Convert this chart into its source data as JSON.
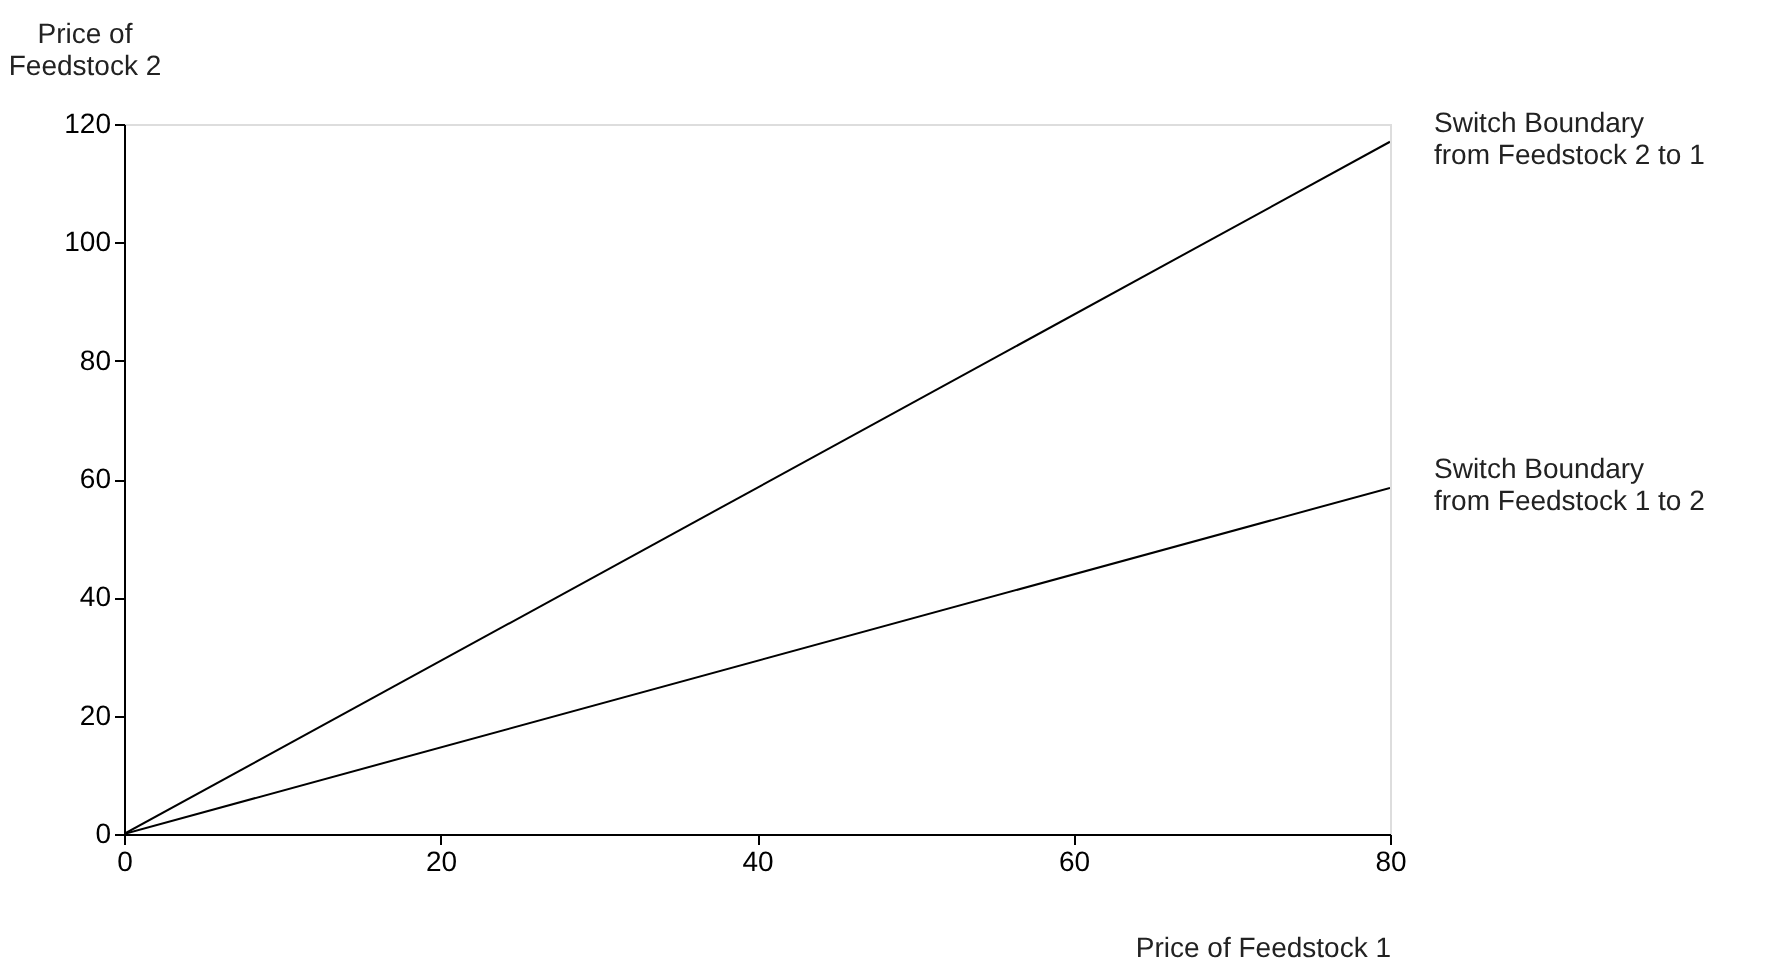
{
  "chart_data": {
    "type": "line",
    "xlabel": "Price of Feedstock 1",
    "ylabel": "Price of\nFeedstock 2",
    "x": [
      0,
      80
    ],
    "series": [
      {
        "name": "Switch Boundary\nfrom Feedstock 2 to 1",
        "color": "#000000",
        "values": [
          0,
          117
        ]
      },
      {
        "name": "Switch Boundary\nfrom Feedstock 1 to 2",
        "color": "#000000",
        "values": [
          0,
          58.5
        ]
      }
    ],
    "xlim": [
      0,
      80
    ],
    "ylim": [
      0,
      120
    ],
    "xticks": [
      0,
      20,
      40,
      60,
      80
    ],
    "yticks": [
      0,
      20,
      40,
      60,
      80,
      100,
      120
    ],
    "grid": false,
    "marker": "none",
    "line_style": "solid"
  }
}
